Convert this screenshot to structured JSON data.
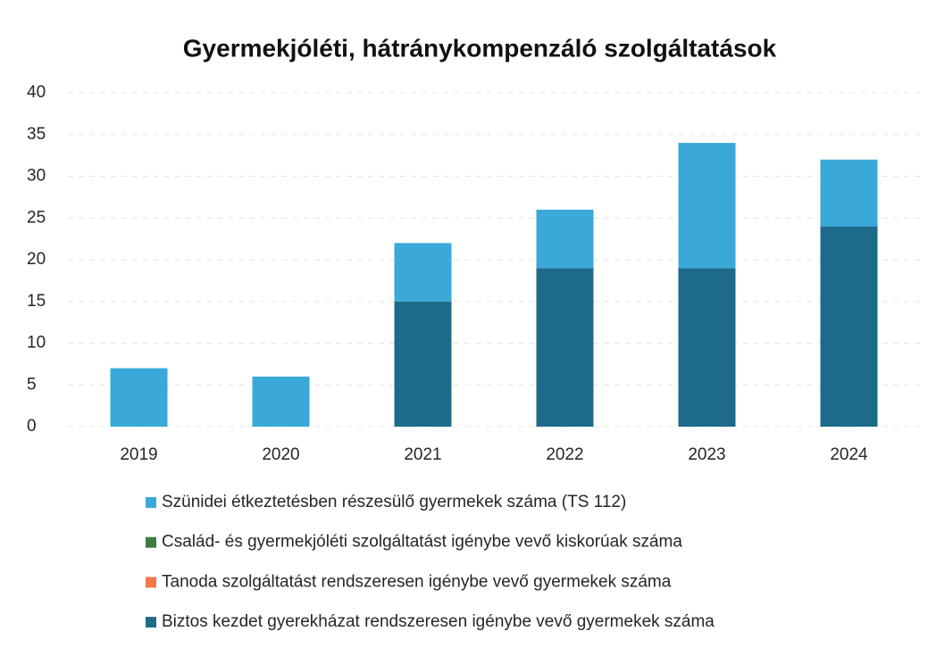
{
  "chart_data": {
    "type": "stacked_bar",
    "title": "Gyermekjóléti, hátránykompenzáló szolgáltatások",
    "categories": [
      "2019",
      "2020",
      "2021",
      "2022",
      "2023",
      "2024"
    ],
    "series": [
      {
        "name": "Szünidei étkeztetésben részesülő gyermekek száma (TS 112)",
        "color": "#3aa8d8",
        "values": [
          7,
          6,
          7,
          7,
          15,
          8
        ]
      },
      {
        "name": "Család- és gyermekjóléti szolgáltatást igénybe vevő kiskorúak száma",
        "color": "#3b7d45",
        "values": [
          0,
          0,
          0,
          0,
          0,
          0
        ]
      },
      {
        "name": "Tanoda szolgáltatást rendszeresen igénybe vevő gyermekek száma",
        "color": "#f4764a",
        "values": [
          0,
          0,
          0,
          0,
          0,
          0
        ]
      },
      {
        "name": "Biztos kezdet gyerekházat rendszeresen igénybe vevő gyermekek száma",
        "color": "#1e6a8b",
        "values": [
          0,
          0,
          15,
          19,
          19,
          24
        ]
      }
    ],
    "ylim": [
      0,
      40
    ],
    "yticks": [
      0,
      5,
      10,
      15,
      20,
      25,
      30,
      35,
      40
    ],
    "grid": true
  }
}
